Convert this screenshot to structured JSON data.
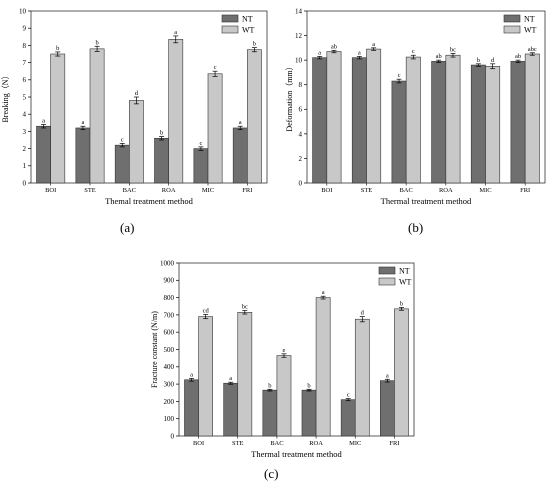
{
  "colors": {
    "NT": "#6f6f6f",
    "WT": "#c8c8c8",
    "axis": "#000000",
    "border": "#333333"
  },
  "chart_data": [
    {
      "type": "bar",
      "panel_label": "(a)",
      "categories": [
        "BOI",
        "STE",
        "BAC",
        "ROA",
        "MIC",
        "FRI"
      ],
      "xlabel": "Themal treatment method",
      "ylabel": "Breaking（N）",
      "ylim": [
        0,
        10
      ],
      "yticks": [
        0,
        1,
        2,
        3,
        4,
        5,
        6,
        7,
        8,
        9,
        10
      ],
      "legend": "top-right",
      "series": [
        {
          "name": "NT",
          "values": [
            3.3,
            3.2,
            2.2,
            2.6,
            2.0,
            3.2
          ],
          "errors": [
            0.1,
            0.1,
            0.1,
            0.1,
            0.1,
            0.1
          ],
          "letters": [
            "a",
            "a",
            "c",
            "b",
            "c",
            "a"
          ]
        },
        {
          "name": "WT",
          "values": [
            7.5,
            7.8,
            4.8,
            8.35,
            6.35,
            7.75
          ],
          "errors": [
            0.12,
            0.15,
            0.2,
            0.2,
            0.15,
            0.12
          ],
          "letters": [
            "b",
            "b",
            "d",
            "a",
            "c",
            "b"
          ]
        }
      ]
    },
    {
      "type": "bar",
      "panel_label": "(b)",
      "categories": [
        "BOI",
        "STE",
        "BAC",
        "ROA",
        "MIC",
        "FRI"
      ],
      "xlabel": "Thermal treatment method",
      "ylabel": "Deformation（mm）",
      "ylim": [
        0,
        14
      ],
      "yticks": [
        0,
        2,
        4,
        6,
        8,
        10,
        12,
        14
      ],
      "legend": "top-right",
      "series": [
        {
          "name": "NT",
          "values": [
            10.2,
            10.2,
            8.3,
            9.9,
            9.6,
            9.9
          ],
          "errors": [
            0.1,
            0.1,
            0.15,
            0.1,
            0.1,
            0.1
          ],
          "letters": [
            "a",
            "a",
            "c",
            "ab",
            "b",
            "ab"
          ]
        },
        {
          "name": "WT",
          "values": [
            10.7,
            10.9,
            10.25,
            10.4,
            9.5,
            10.5
          ],
          "errors": [
            0.1,
            0.1,
            0.15,
            0.15,
            0.2,
            0.1
          ],
          "letters": [
            "ab",
            "a",
            "c",
            "bc",
            "d",
            "abc"
          ]
        }
      ]
    },
    {
      "type": "bar",
      "panel_label": "(c)",
      "categories": [
        "BOI",
        "STE",
        "BAC",
        "ROA",
        "MIC",
        "FRI"
      ],
      "xlabel": "Thermal treatment method",
      "ylabel": "Fracture constant (N/m)",
      "ylim": [
        0,
        1000
      ],
      "yticks": [
        0,
        100,
        200,
        300,
        400,
        500,
        600,
        700,
        800,
        900,
        1000
      ],
      "legend": "top-right",
      "series": [
        {
          "name": "NT",
          "values": [
            325,
            305,
            265,
            265,
            210,
            320
          ],
          "errors": [
            8,
            6,
            5,
            5,
            6,
            8
          ],
          "letters": [
            "a",
            "a",
            "b",
            "b",
            "c",
            "a"
          ]
        },
        {
          "name": "WT",
          "values": [
            690,
            715,
            465,
            800,
            675,
            735
          ],
          "errors": [
            12,
            10,
            10,
            8,
            15,
            8
          ],
          "letters": [
            "cd",
            "bc",
            "e",
            "a",
            "d",
            "b"
          ]
        }
      ]
    }
  ]
}
